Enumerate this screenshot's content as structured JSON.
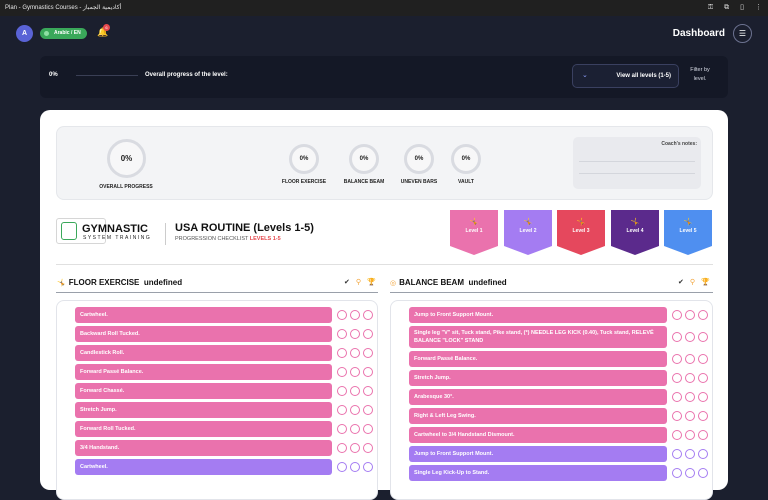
{
  "window": {
    "title": "Plan - Gymnastics Courses - أكاديمية الجمباز"
  },
  "nav": {
    "avatar_initial": "A",
    "lang_label": "Arabic / EN",
    "notifications_count": "6",
    "page_title": "Dashboard"
  },
  "progress": {
    "percent": "0%",
    "label": "Overall progress of the level:",
    "levels_button": "View all levels (1-5)",
    "filter_note": "Filter by level."
  },
  "summary": {
    "overall_value": "0%",
    "overall_label": "OVERALL PROGRESS",
    "events": [
      {
        "value": "0%",
        "label": "FLOOR EXERCISE"
      },
      {
        "value": "0%",
        "label": "BALANCE BEAM"
      },
      {
        "value": "0%",
        "label": "UNEVEN BARS"
      },
      {
        "value": "0%",
        "label": "VAULT"
      }
    ],
    "notes_title": "Coach's notes:"
  },
  "brand": {
    "name": "GYMNASTIC",
    "sub": "SYSTEM TRAINING"
  },
  "routine": {
    "title": "USA ROUTINE (Levels 1-5)",
    "sub": "PROGRESSION CHECKLIST",
    "levels_tag": "LEVELS 1-5"
  },
  "levels": [
    {
      "label": "Level 1",
      "color": "#ea72ad"
    },
    {
      "label": "Level 2",
      "color": "#a47cf2"
    },
    {
      "label": "Level 3",
      "color": "#e5485d"
    },
    {
      "label": "Level 4",
      "color": "#5b2a8c"
    },
    {
      "label": "Level 5",
      "color": "#4f8ff0"
    }
  ],
  "floor": {
    "title": "FLOOR EXERCISE",
    "suffix": "undefined",
    "items": [
      {
        "label": "Cartwheel.",
        "level": "pink"
      },
      {
        "label": "Backward Roll Tucked.",
        "level": "pink"
      },
      {
        "label": "Candlestick Roll.",
        "level": "pink"
      },
      {
        "label": "Forward Passé Balance.",
        "level": "pink"
      },
      {
        "label": "Forward Chassé.",
        "level": "pink"
      },
      {
        "label": "Stretch Jump.",
        "level": "pink"
      },
      {
        "label": "Forward Roll Tucked.",
        "level": "pink"
      },
      {
        "label": "3/4 Handstand.",
        "level": "pink"
      },
      {
        "label": "Cartwheel.",
        "level": "purple"
      }
    ]
  },
  "beam": {
    "title": "BALANCE BEAM",
    "suffix": "undefined",
    "items": [
      {
        "label": "Jump to Front Support Mount.",
        "level": "pink"
      },
      {
        "label": "Single leg \"V\" sit, Tuck stand, Pike stand, (*) NEEDLE LEG KICK (0.40), Tuck stand, RELEVÉ BALANCE \"LOCK\" STAND",
        "level": "pink"
      },
      {
        "label": "Forward Passé Balance.",
        "level": "pink"
      },
      {
        "label": "Stretch Jump.",
        "level": "pink"
      },
      {
        "label": "Arabesque 30°.",
        "level": "pink"
      },
      {
        "label": "Right & Left Leg Swing.",
        "level": "pink"
      },
      {
        "label": "Cartwheel to 3/4 Handstand Dismount.",
        "level": "pink"
      },
      {
        "label": "Jump to Front Support Mount.",
        "level": "purple"
      },
      {
        "label": "Single Leg Kick-Up to Stand.",
        "level": "purple"
      }
    ]
  }
}
